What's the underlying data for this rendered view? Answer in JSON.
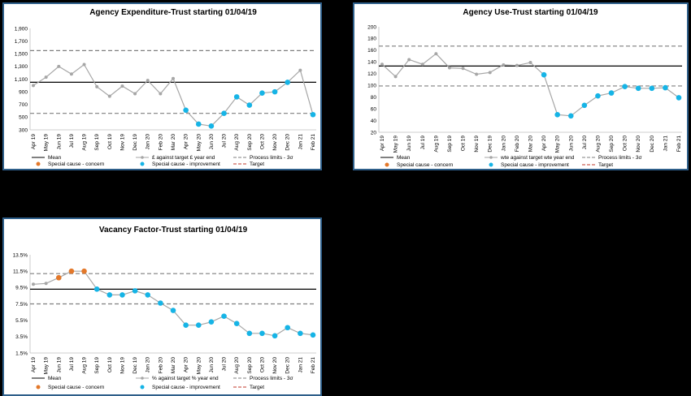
{
  "legend_labels": {
    "mean": "Mean",
    "process_limits": "Process limits - 3σ",
    "concern": "Special cause - concern",
    "improvement": "Special cause  - improvement",
    "target": "Target"
  },
  "colors": {
    "series": "#a6a6a6",
    "mean": "#000000",
    "limits": "#7f7f7f",
    "concern": "#e3782a",
    "improvement": "#16b4e6",
    "target": "#c0392b",
    "border": "#2e5f8a"
  },
  "chart_data": [
    {
      "type": "line",
      "title": "Agency Expenditure-Trust starting 01/04/19",
      "categories": [
        "Apr 19",
        "May 19",
        "Jun 19",
        "Jul 19",
        "Aug 19",
        "Sep 19",
        "Oct 19",
        "Nov 19",
        "Dec 19",
        "Jan 20",
        "Feb 20",
        "Mar 20",
        "Apr 20",
        "May 20",
        "Jun 20",
        "Jul 20",
        "Aug 20",
        "Sep 20",
        "Oct 20",
        "Nov 20",
        "Dec 20",
        "Jan 21",
        "Feb 21"
      ],
      "series": [
        {
          "name": "£ against target £ year end",
          "values": [
            1000,
            1130,
            1300,
            1180,
            1330,
            980,
            830,
            990,
            870,
            1080,
            870,
            1110,
            610,
            390,
            360,
            560,
            820,
            690,
            880,
            900,
            1050,
            1240,
            540
          ]
        }
      ],
      "mean": 1050,
      "upper_limit": 1550,
      "lower_limit": 560,
      "point_status": [
        "n",
        "n",
        "n",
        "n",
        "n",
        "n",
        "n",
        "n",
        "n",
        "n",
        "n",
        "n",
        "i",
        "i",
        "i",
        "i",
        "i",
        "i",
        "i",
        "i",
        "i",
        "n",
        "i"
      ],
      "y_ticks": [
        "300",
        "500",
        "700",
        "900",
        "1,100",
        "1,300",
        "1,500",
        "1,700",
        "1,900"
      ],
      "ylim": [
        300,
        1900
      ],
      "grid": false
    },
    {
      "type": "line",
      "title": "Agency Use-Trust starting 01/04/19",
      "categories": [
        "Apr 19",
        "May 19",
        "Jun 19",
        "Jul 19",
        "Aug 19",
        "Sep 19",
        "Oct 19",
        "Nov 19",
        "Dec 19",
        "Jan 20",
        "Feb 20",
        "Mar 20",
        "Apr 20",
        "May 20",
        "Jun 20",
        "Jul 20",
        "Aug 20",
        "Sep 20",
        "Oct 20",
        "Nov 20",
        "Dec 20",
        "Jan 21",
        "Feb 21"
      ],
      "series": [
        {
          "name": "wte against target wte year end",
          "values": [
            136,
            115,
            144,
            136,
            154,
            130,
            129,
            119,
            122,
            135,
            134,
            139,
            118,
            50,
            48,
            66,
            82,
            87,
            98,
            95,
            95,
            96,
            79
          ]
        }
      ],
      "mean": 133,
      "upper_limit": 167,
      "lower_limit": 99,
      "point_status": [
        "n",
        "n",
        "n",
        "n",
        "n",
        "n",
        "n",
        "n",
        "n",
        "n",
        "n",
        "n",
        "i",
        "i",
        "i",
        "i",
        "i",
        "i",
        "i",
        "i",
        "i",
        "i",
        "i"
      ],
      "y_ticks": [
        "20",
        "40",
        "60",
        "80",
        "100",
        "120",
        "140",
        "160",
        "180",
        "200"
      ],
      "ylim": [
        20,
        200
      ],
      "grid": false
    },
    {
      "type": "line",
      "title": "Vacancy Factor-Trust starting 01/04/19",
      "categories": [
        "Apr 19",
        "May 19",
        "Jun 19",
        "Jul 19",
        "Aug 19",
        "Sep 19",
        "Oct 19",
        "Nov 19",
        "Dec 19",
        "Jan 20",
        "Feb 20",
        "Mar 20",
        "Apr 20",
        "May 20",
        "Jun 20",
        "Jul 20",
        "Aug 20",
        "Sep 20",
        "Oct 20",
        "Nov 20",
        "Dec 20",
        "Jan 21",
        "Feb 21"
      ],
      "series": [
        {
          "name": "% against target % year end",
          "values": [
            9.9,
            10.0,
            10.7,
            11.5,
            11.5,
            9.3,
            8.6,
            8.6,
            9.1,
            8.6,
            7.6,
            6.7,
            4.9,
            4.9,
            5.3,
            6.0,
            5.1,
            3.9,
            3.9,
            3.6,
            4.6,
            3.9,
            3.7
          ]
        }
      ],
      "mean": 9.3,
      "upper_limit": 11.2,
      "lower_limit": 7.5,
      "point_status": [
        "n",
        "n",
        "c",
        "c",
        "c",
        "i",
        "i",
        "i",
        "i",
        "i",
        "i",
        "i",
        "i",
        "i",
        "i",
        "i",
        "i",
        "i",
        "i",
        "i",
        "i",
        "i",
        "i"
      ],
      "y_ticks": [
        "1.5%",
        "3.5%",
        "5.5%",
        "7.5%",
        "9.5%",
        "11.5%",
        "13.5%"
      ],
      "ylim": [
        1.5,
        13.5
      ],
      "grid": false
    }
  ]
}
